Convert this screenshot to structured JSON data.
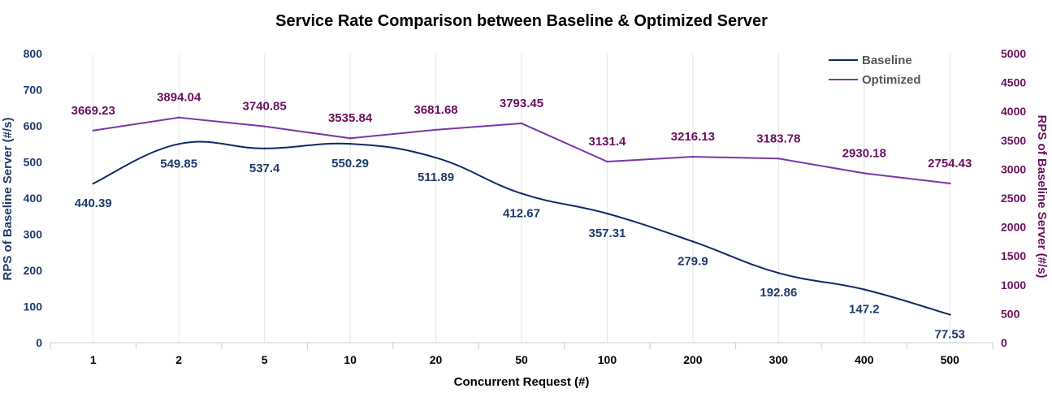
{
  "colors": {
    "baseline": "#0d2a66",
    "optimized": "#7b35a8",
    "left_axis": "#1f3a6b",
    "right_axis": "#6a0f5e",
    "grid": "#e6e6e6"
  },
  "chart_data": {
    "type": "line",
    "title": "Service Rate Comparison between Baseline & Optimized Server",
    "xlabel": "Concurrent Request (#)",
    "ylabel_left": "RPS of Baseline Server (#/s)",
    "ylabel_right": "RPS of Baseline Server (#/s)",
    "categories": [
      "1",
      "2",
      "5",
      "10",
      "20",
      "50",
      "100",
      "200",
      "300",
      "400",
      "500"
    ],
    "y_left": {
      "min": 0,
      "max": 800,
      "ticks": [
        "0",
        "100",
        "200",
        "300",
        "400",
        "500",
        "600",
        "700",
        "800"
      ]
    },
    "y_right": {
      "min": 0,
      "max": 5000,
      "ticks": [
        "0",
        "500",
        "1000",
        "1500",
        "2000",
        "2500",
        "3000",
        "3500",
        "4000",
        "4500",
        "5000"
      ]
    },
    "grid": "vertical",
    "legend_position": "top-right",
    "series": [
      {
        "name": "Baseline",
        "axis": "left",
        "smooth": true,
        "values": [
          440.39,
          549.85,
          537.4,
          550.29,
          511.89,
          412.67,
          357.31,
          279.9,
          192.86,
          147.2,
          77.53
        ],
        "labels": [
          "440.39",
          "549.85",
          "537.4",
          "550.29",
          "511.89",
          "412.67",
          "357.31",
          "279.9",
          "192.86",
          "147.2",
          "77.53"
        ]
      },
      {
        "name": "Optimized",
        "axis": "right",
        "smooth": false,
        "values": [
          3669.23,
          3894.04,
          3740.85,
          3535.84,
          3681.68,
          3793.45,
          3131.4,
          3216.13,
          3183.78,
          2930.18,
          2754.43
        ],
        "labels": [
          "3669.23",
          "3894.04",
          "3740.85",
          "3535.84",
          "3681.68",
          "3793.45",
          "3131.4",
          "3216.13",
          "3183.78",
          "2930.18",
          "2754.43"
        ]
      }
    ]
  }
}
